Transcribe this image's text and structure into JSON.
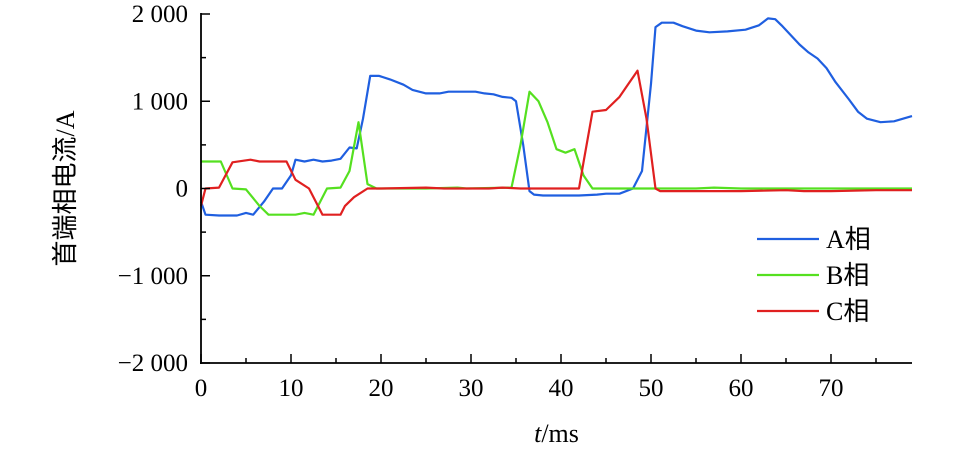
{
  "chart_data": {
    "type": "line",
    "title": "",
    "xlabel_italic": "t",
    "xlabel_rest": "/ms",
    "ylabel": "首端相电流/A",
    "xlim": [
      0,
      79
    ],
    "ylim": [
      -2000,
      2000
    ],
    "x_ticks": [
      0,
      10,
      20,
      30,
      40,
      50,
      60,
      70
    ],
    "x_tick_labels": [
      "0",
      "10",
      "20",
      "30",
      "40",
      "50",
      "60",
      "70"
    ],
    "y_ticks": [
      -2000,
      -1000,
      0,
      1000,
      2000
    ],
    "y_tick_labels": [
      "−2 000",
      "−1 000",
      "0",
      "1 000",
      "2 000"
    ],
    "grid": false,
    "legend_position": "right",
    "series": [
      {
        "name": "A相",
        "color": "#1f5fe0",
        "points": [
          [
            0,
            -150
          ],
          [
            0.5,
            -300
          ],
          [
            2,
            -310
          ],
          [
            3,
            -310
          ],
          [
            4,
            -310
          ],
          [
            5,
            -280
          ],
          [
            5.8,
            -300
          ],
          [
            7,
            -150
          ],
          [
            8,
            0
          ],
          [
            9,
            0
          ],
          [
            10,
            150
          ],
          [
            10.5,
            330
          ],
          [
            11.5,
            310
          ],
          [
            12.5,
            330
          ],
          [
            13.5,
            310
          ],
          [
            14.5,
            320
          ],
          [
            15.5,
            340
          ],
          [
            16.5,
            470
          ],
          [
            17.3,
            460
          ],
          [
            18,
            800
          ],
          [
            18.8,
            1290
          ],
          [
            19.8,
            1290
          ],
          [
            21,
            1250
          ],
          [
            22.5,
            1190
          ],
          [
            23.5,
            1130
          ],
          [
            25,
            1090
          ],
          [
            26.5,
            1090
          ],
          [
            27.5,
            1110
          ],
          [
            29,
            1110
          ],
          [
            30.5,
            1110
          ],
          [
            31.5,
            1090
          ],
          [
            32.5,
            1080
          ],
          [
            33.5,
            1050
          ],
          [
            34.5,
            1040
          ],
          [
            35,
            1000
          ],
          [
            35.8,
            500
          ],
          [
            36.5,
            -30
          ],
          [
            37,
            -70
          ],
          [
            38,
            -80
          ],
          [
            40,
            -80
          ],
          [
            42,
            -80
          ],
          [
            44,
            -70
          ],
          [
            45,
            -60
          ],
          [
            46.5,
            -60
          ],
          [
            48,
            0
          ],
          [
            49,
            200
          ],
          [
            50,
            1200
          ],
          [
            50.5,
            1850
          ],
          [
            51.2,
            1900
          ],
          [
            52.5,
            1900
          ],
          [
            53.5,
            1860
          ],
          [
            55,
            1810
          ],
          [
            56.5,
            1790
          ],
          [
            58.5,
            1800
          ],
          [
            60.5,
            1820
          ],
          [
            62,
            1870
          ],
          [
            63,
            1950
          ],
          [
            63.8,
            1940
          ],
          [
            64.5,
            1870
          ],
          [
            65.5,
            1760
          ],
          [
            66.5,
            1650
          ],
          [
            67.5,
            1560
          ],
          [
            68.5,
            1490
          ],
          [
            69.5,
            1380
          ],
          [
            70.5,
            1220
          ],
          [
            72,
            1020
          ],
          [
            73,
            880
          ],
          [
            74,
            800
          ],
          [
            75.5,
            760
          ],
          [
            77,
            770
          ],
          [
            78,
            800
          ],
          [
            79,
            830
          ]
        ]
      },
      {
        "name": "B相",
        "color": "#55e020",
        "points": [
          [
            0,
            310
          ],
          [
            1,
            310
          ],
          [
            2.2,
            310
          ],
          [
            3.5,
            0
          ],
          [
            5,
            -10
          ],
          [
            6.5,
            -200
          ],
          [
            7.5,
            -300
          ],
          [
            9,
            -300
          ],
          [
            10.5,
            -300
          ],
          [
            11.5,
            -280
          ],
          [
            12.5,
            -300
          ],
          [
            14,
            0
          ],
          [
            15.5,
            10
          ],
          [
            16.5,
            200
          ],
          [
            17.5,
            760
          ],
          [
            18.5,
            50
          ],
          [
            19.5,
            0
          ],
          [
            25,
            0
          ],
          [
            28.5,
            10
          ],
          [
            29.5,
            0
          ],
          [
            34.5,
            10
          ],
          [
            35.5,
            500
          ],
          [
            36.5,
            1110
          ],
          [
            37.5,
            1000
          ],
          [
            38.5,
            760
          ],
          [
            39.5,
            450
          ],
          [
            40.5,
            410
          ],
          [
            41.5,
            450
          ],
          [
            42.5,
            150
          ],
          [
            43.5,
            0
          ],
          [
            50,
            0
          ],
          [
            55,
            0
          ],
          [
            57,
            10
          ],
          [
            60,
            0
          ],
          [
            65,
            0
          ],
          [
            70,
            0
          ],
          [
            75,
            0
          ],
          [
            79,
            0
          ]
        ]
      },
      {
        "name": "C相",
        "color": "#e02020",
        "points": [
          [
            0,
            -200
          ],
          [
            0.5,
            0
          ],
          [
            2,
            10
          ],
          [
            3.5,
            300
          ],
          [
            5.5,
            330
          ],
          [
            6.5,
            310
          ],
          [
            8,
            310
          ],
          [
            9.5,
            310
          ],
          [
            10.5,
            100
          ],
          [
            12,
            0
          ],
          [
            13.5,
            -300
          ],
          [
            15.5,
            -300
          ],
          [
            16,
            -200
          ],
          [
            17,
            -100
          ],
          [
            18.5,
            0
          ],
          [
            20,
            0
          ],
          [
            25,
            10
          ],
          [
            27,
            0
          ],
          [
            32,
            0
          ],
          [
            33.5,
            10
          ],
          [
            35.5,
            0
          ],
          [
            40,
            0
          ],
          [
            42,
            0
          ],
          [
            42.5,
            300
          ],
          [
            43.5,
            880
          ],
          [
            45,
            900
          ],
          [
            46.5,
            1050
          ],
          [
            47.5,
            1200
          ],
          [
            48.5,
            1350
          ],
          [
            49.5,
            800
          ],
          [
            50.5,
            0
          ],
          [
            51,
            -30
          ],
          [
            55,
            -30
          ],
          [
            60,
            -30
          ],
          [
            65,
            -20
          ],
          [
            67,
            -30
          ],
          [
            70,
            -30
          ],
          [
            75,
            -20
          ],
          [
            78,
            -20
          ],
          [
            79,
            -20
          ]
        ]
      }
    ]
  }
}
